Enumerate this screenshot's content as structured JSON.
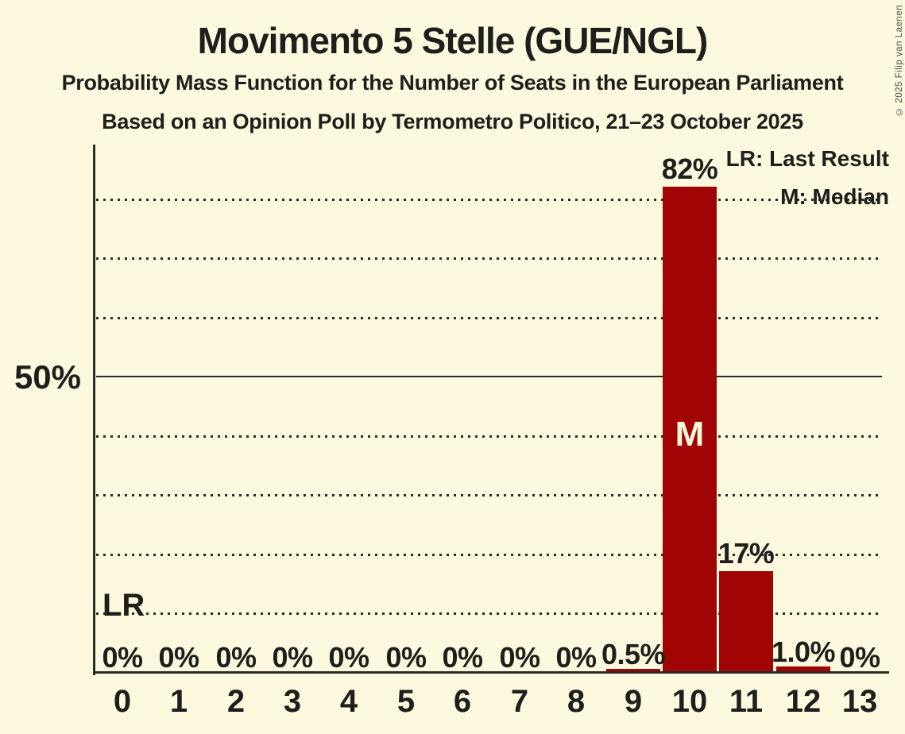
{
  "header": {
    "title": "Movimento 5 Stelle (GUE/NGL)",
    "subtitle1": "Probability Mass Function for the Number of Seats in the European Parliament",
    "subtitle2": "Based on an Opinion Poll by Termometro Politico, 21–23 October 2025",
    "copyright": "© 2025 Filip van Laenen"
  },
  "legend": {
    "lr_label": "LR: Last Result",
    "m_label": "M: Median",
    "position": "top-right"
  },
  "y_axis": {
    "tick_label": "50%",
    "tick_pct": 50
  },
  "markers": {
    "last_result": {
      "label": "LR",
      "line_pct": 10
    },
    "median": {
      "label": "M",
      "category": "10"
    }
  },
  "colors": {
    "background": "#FDF9DE",
    "bar": "#A00404",
    "text": "#1E1E1C",
    "grid": "#2B2B28",
    "median_text": "#FDF9DE",
    "copyright": "#4D4D4D"
  },
  "chart_data": {
    "type": "bar",
    "title": "Movimento 5 Stelle (GUE/NGL)",
    "categories": [
      "0",
      "1",
      "2",
      "3",
      "4",
      "5",
      "6",
      "7",
      "8",
      "9",
      "10",
      "11",
      "12",
      "13"
    ],
    "values": [
      0,
      0,
      0,
      0,
      0,
      0,
      0,
      0,
      0,
      0.5,
      82,
      17,
      1.0,
      0
    ],
    "bar_labels": [
      "0%",
      "0%",
      "0%",
      "0%",
      "0%",
      "0%",
      "0%",
      "0%",
      "0%",
      "0.5%",
      "82%",
      "17%",
      "1.0%",
      "0%"
    ],
    "ylim": [
      0,
      89
    ],
    "y_gridlines_pct": [
      10,
      20,
      30,
      40,
      50,
      60,
      70,
      80
    ],
    "solid_gridline_pct": 50,
    "grid_style": "dotted-horizontal",
    "legend_position": "top-right",
    "median_category": "10",
    "last_result_line_pct": 10
  }
}
